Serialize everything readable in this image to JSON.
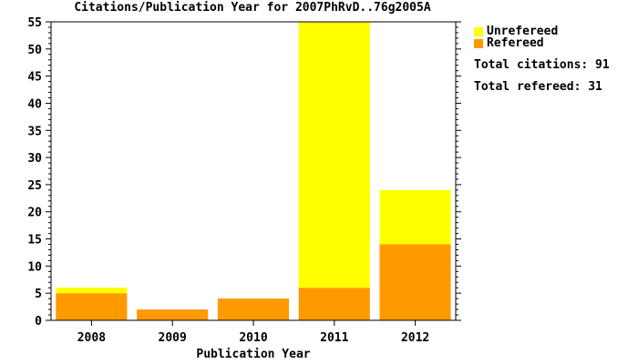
{
  "chart_data": {
    "type": "bar",
    "stacked": true,
    "title": "Citations/Publication Year for 2007PhRvD..76g2005A",
    "xlabel": "Publication Year",
    "ylabel": "",
    "categories": [
      "2008",
      "2009",
      "2010",
      "2011",
      "2012"
    ],
    "ylim": [
      0,
      55
    ],
    "yticks": [
      0,
      5,
      10,
      15,
      20,
      25,
      30,
      35,
      40,
      45,
      50,
      55
    ],
    "series": [
      {
        "name": "Refereed",
        "color": "#ff9900",
        "values": [
          5,
          2,
          4,
          6,
          14
        ]
      },
      {
        "name": "Unrefereed",
        "color": "#ffff00",
        "values": [
          1,
          0,
          0,
          49,
          10
        ]
      }
    ],
    "legend_position": "right"
  },
  "stats": {
    "total_citations": "Total citations: 91",
    "total_refereed": "Total refereed: 31"
  }
}
